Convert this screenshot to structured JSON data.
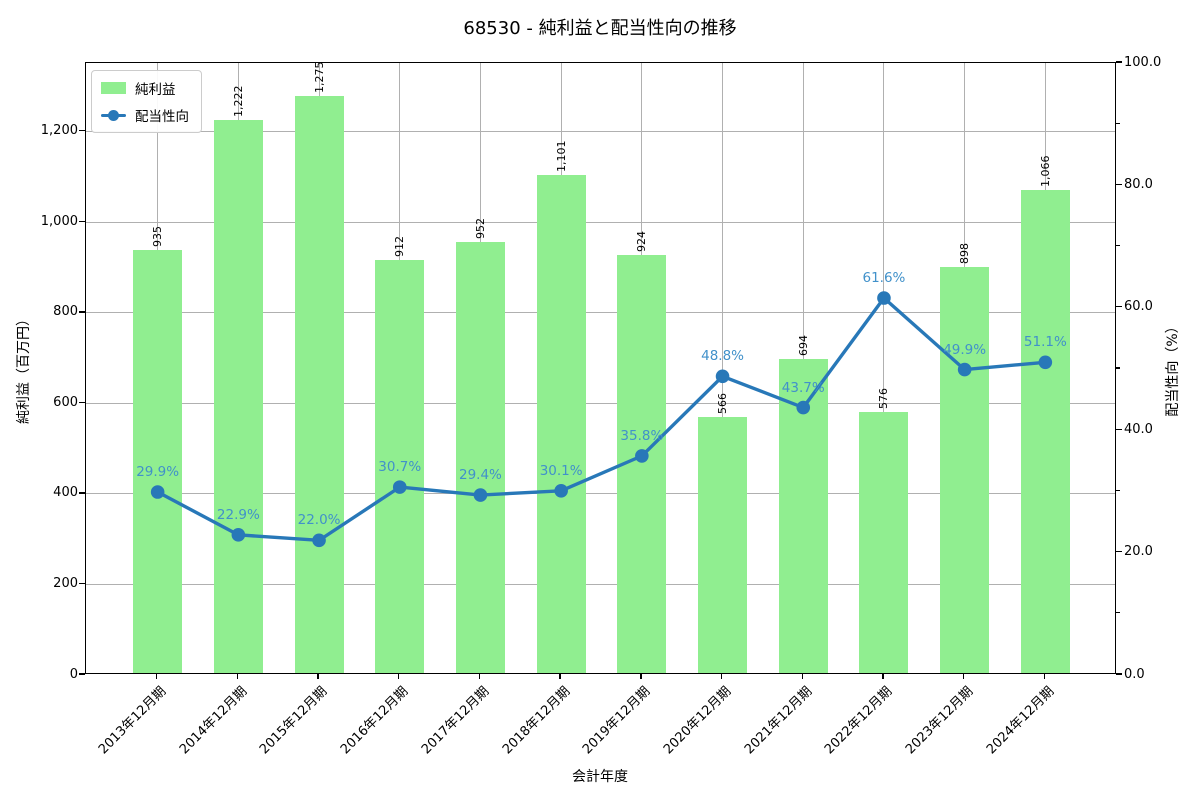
{
  "title": "68530 - 純利益と配当性向の推移",
  "chart_data": {
    "type": "combo-bar-line",
    "title": "68530 - 純利益と配当性向の推移",
    "xlabel": "会計年度",
    "ylabel_left": "純利益（百万円）",
    "ylabel_right": "配当性向（%）",
    "categories": [
      "2013年12月期",
      "2014年12月期",
      "2015年12月期",
      "2016年12月期",
      "2017年12月期",
      "2018年12月期",
      "2019年12月期",
      "2020年12月期",
      "2021年12月期",
      "2022年12月期",
      "2023年12月期",
      "2024年12月期"
    ],
    "series": [
      {
        "name": "純利益",
        "type": "bar",
        "axis": "left",
        "color": "#90ee90",
        "values": [
          935,
          1222,
          1275,
          912,
          952,
          1101,
          924,
          566,
          694,
          576,
          898,
          1066
        ],
        "labels": [
          "935",
          "1,222",
          "1,275",
          "912",
          "952",
          "1,101",
          "924",
          "566",
          "694",
          "576",
          "898",
          "1,066"
        ]
      },
      {
        "name": "配当性向",
        "type": "line",
        "axis": "right",
        "color": "#2878b8",
        "label_color": "#4191ca",
        "values": [
          29.9,
          22.9,
          22.0,
          30.7,
          29.4,
          30.1,
          35.8,
          48.8,
          43.7,
          61.6,
          49.9,
          51.1
        ],
        "labels": [
          "29.9%",
          "22.9%",
          "22.0%",
          "30.7%",
          "29.4%",
          "30.1%",
          "35.8%",
          "48.8%",
          "43.7%",
          "61.6%",
          "49.9%",
          "51.1%"
        ]
      }
    ],
    "left_axis": {
      "ticks": [
        0,
        200,
        400,
        600,
        800,
        1000,
        1200
      ],
      "tick_labels": [
        "0",
        "200",
        "400",
        "600",
        "800",
        "1,000",
        "1,200"
      ],
      "range": [
        0,
        1352
      ]
    },
    "right_axis": {
      "ticks": [
        0,
        20,
        40,
        60,
        80,
        100
      ],
      "tick_labels": [
        "0.0",
        "20.0",
        "40.0",
        "60.0",
        "80.0",
        "100.0"
      ],
      "minor_ticks": [
        10,
        30,
        50,
        70,
        90
      ],
      "range": [
        0,
        100
      ]
    },
    "grid": true,
    "legend_position": "upper-left",
    "colors": {
      "bar": "#90ee90",
      "line": "#2878b8",
      "line_label": "#4191ca",
      "grid": "#b0b0b0",
      "spine": "#000000",
      "background": "#ffffff"
    }
  }
}
